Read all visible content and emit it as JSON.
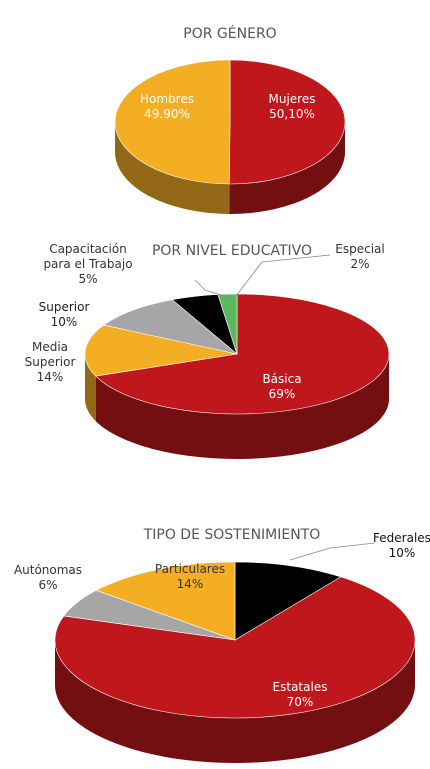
{
  "chart_data": [
    {
      "type": "pie",
      "title": "POR GÉNERO",
      "categories": [
        "Mujeres",
        "Hombres"
      ],
      "values": [
        50.1,
        49.9
      ],
      "value_labels": [
        "50,10%",
        "49.90%"
      ],
      "colors": [
        "#c0171d",
        "#f4ae24"
      ]
    },
    {
      "type": "pie",
      "title": "POR NIVEL EDUCATIVO",
      "categories": [
        "Básica",
        "Media Superior",
        "Superior",
        "Capacitación para el Trabajo",
        "Especial"
      ],
      "values": [
        69,
        14,
        10,
        5,
        2
      ],
      "value_labels": [
        "69%",
        "14%",
        "10%",
        "5%",
        "2%"
      ],
      "colors": [
        "#c0171d",
        "#f4ae24",
        "#a6a6a6",
        "#000000",
        "#5cb85c"
      ]
    },
    {
      "type": "pie",
      "title": "TIPO DE SOSTENIMIENTO",
      "categories": [
        "Federales",
        "Estatales",
        "Autónomas",
        "Particulares"
      ],
      "values": [
        10,
        70,
        6,
        14
      ],
      "value_labels": [
        "10%",
        "70%",
        "6%",
        "14%"
      ],
      "colors": [
        "#000000",
        "#c0171d",
        "#a6a6a6",
        "#f4ae24"
      ]
    }
  ]
}
